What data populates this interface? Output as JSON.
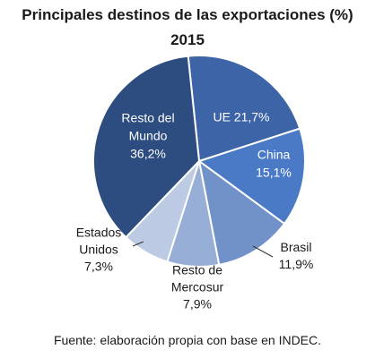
{
  "chart_data": {
    "type": "pie",
    "title": "Principales destinos de las exportaciones (%)",
    "subtitle": "2015",
    "slices": [
      {
        "name": "UE",
        "value": 21.7,
        "value_label": "21,7%",
        "color": "#3c64a6",
        "label_lines": [
          "UE 21,7%"
        ],
        "label_color": "#ffffff"
      },
      {
        "name": "China",
        "value": 15.1,
        "value_label": "15,1%",
        "color": "#4a7ac6",
        "label_lines": [
          "China",
          "15,1%"
        ],
        "label_color": "#ffffff"
      },
      {
        "name": "Brasil",
        "value": 11.9,
        "value_label": "11,9%",
        "color": "#7192c9",
        "label_lines": [
          "Brasil",
          "11,9%"
        ],
        "label_color": "#1a1a1a"
      },
      {
        "name": "Resto de Mercosur",
        "value": 7.9,
        "value_label": "7,9%",
        "color": "#97afd6",
        "label_lines": [
          "Resto de",
          "Mercosur",
          "7,9%"
        ],
        "label_color": "#1a1a1a"
      },
      {
        "name": "Estados Unidos",
        "value": 7.3,
        "value_label": "7,3%",
        "color": "#bccae3",
        "label_lines": [
          "Estados",
          "Unidos",
          "7,3%"
        ],
        "label_color": "#1a1a1a"
      },
      {
        "name": "Resto del Mundo",
        "value": 36.2,
        "value_label": "36,2%",
        "color": "#2d4c80",
        "label_lines": [
          "Resto del",
          "Mundo",
          "36,2%"
        ],
        "label_color": "#ffffff"
      }
    ]
  },
  "source": "Fuente: elaboración propia con base en INDEC."
}
